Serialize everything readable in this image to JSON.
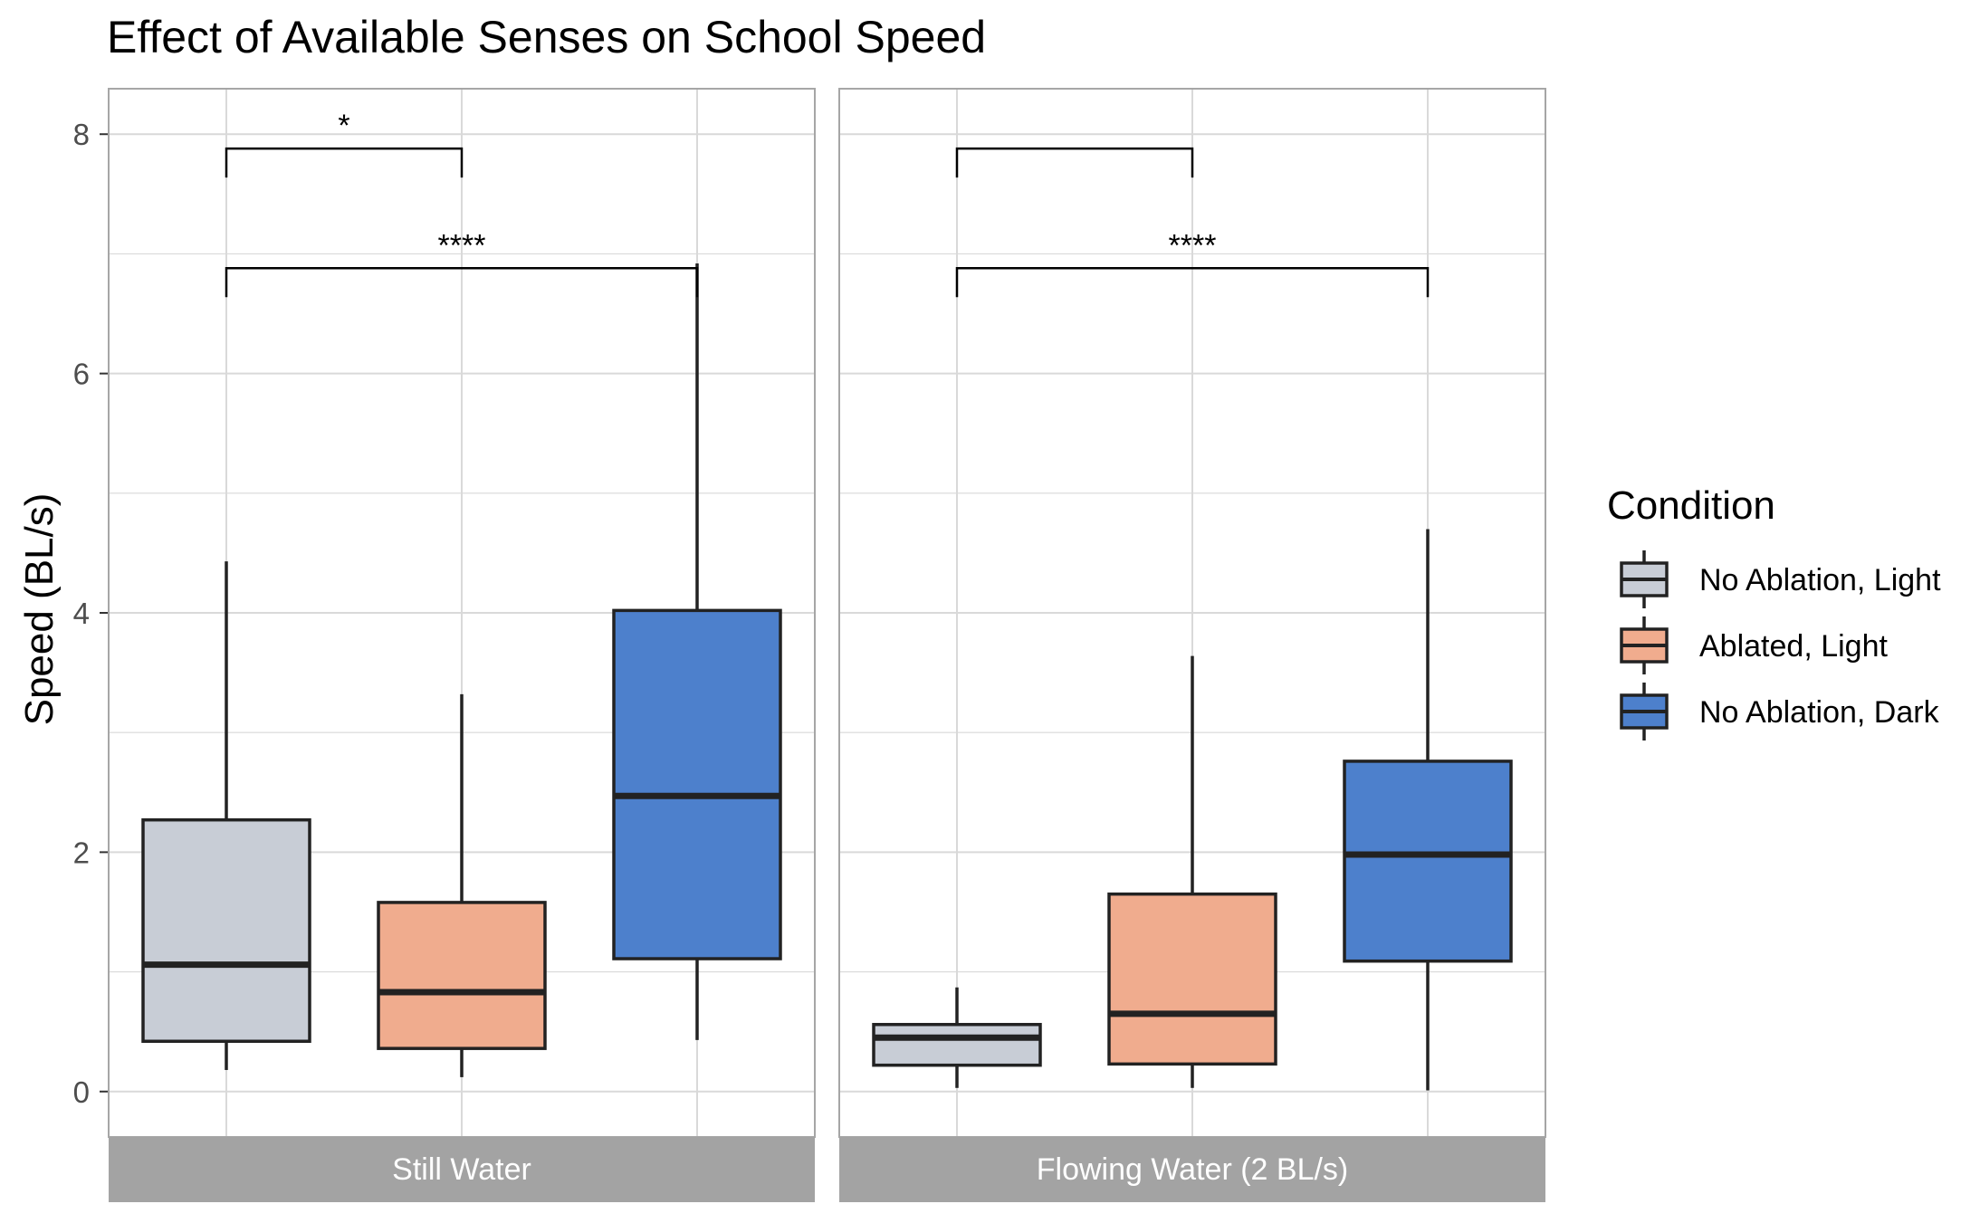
{
  "chart_data": {
    "type": "box",
    "title": "Effect of Available Senses on School Speed",
    "ylabel": "Speed (BL/s)",
    "xlabel": "",
    "ylim": [
      -0.38,
      8.38
    ],
    "yticks": [
      0,
      2,
      4,
      6,
      8
    ],
    "grid": true,
    "legend": {
      "title": "Condition",
      "position": "right",
      "entries": [
        {
          "label": "No Ablation, Light",
          "color": "#c8cdd6"
        },
        {
          "label": "Ablated, Light",
          "color": "#f0ac8e"
        },
        {
          "label": "No Ablation, Dark",
          "color": "#4d80cc"
        }
      ]
    },
    "panels": [
      {
        "label": "Still Water",
        "boxes": [
          {
            "condition": "No Ablation, Light",
            "min": 0.18,
            "q1": 0.42,
            "median": 1.06,
            "q3": 2.27,
            "max": 4.43
          },
          {
            "condition": "Ablated, Light",
            "min": 0.12,
            "q1": 0.36,
            "median": 0.83,
            "q3": 1.58,
            "max": 3.32
          },
          {
            "condition": "No Ablation, Dark",
            "min": 0.43,
            "q1": 1.11,
            "median": 2.47,
            "q3": 4.02,
            "max": 6.92
          }
        ],
        "brackets": [
          {
            "from": 0,
            "to": 1,
            "y": 7.88,
            "label": "*"
          },
          {
            "from": 0,
            "to": 2,
            "y": 6.88,
            "label": "****"
          }
        ]
      },
      {
        "label": "Flowing Water (2 BL/s)",
        "boxes": [
          {
            "condition": "No Ablation, Light",
            "min": 0.03,
            "q1": 0.22,
            "median": 0.45,
            "q3": 0.56,
            "max": 0.87
          },
          {
            "condition": "Ablated, Light",
            "min": 0.03,
            "q1": 0.23,
            "median": 0.65,
            "q3": 1.65,
            "max": 3.64
          },
          {
            "condition": "No Ablation, Dark",
            "min": 0.01,
            "q1": 1.09,
            "median": 1.98,
            "q3": 2.76,
            "max": 4.7
          }
        ],
        "brackets": [
          {
            "from": 0,
            "to": 1,
            "y": 7.88,
            "label": ""
          },
          {
            "from": 0,
            "to": 2,
            "y": 6.88,
            "label": "****"
          }
        ]
      }
    ],
    "colors": {
      "panel_border": "#a6a6a6",
      "grid": "#d9d9d9",
      "strip": "#a3a3a3",
      "strip_text": "#ffffff",
      "box_outline": "#222222",
      "text": "#000000",
      "tick_text": "#4d4d4d"
    }
  }
}
